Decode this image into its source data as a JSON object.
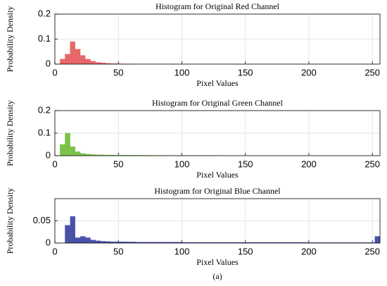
{
  "caption": "(a)",
  "chart_data": [
    {
      "type": "histogram",
      "title": "Histogram for Original Red Channel",
      "xlabel": "Pixel Values",
      "ylabel": "Probability Density",
      "color": "#e8686a",
      "bins": [
        0,
        4,
        8,
        12,
        16,
        20,
        24,
        28,
        32,
        36,
        40,
        44,
        48,
        52,
        56,
        60,
        64,
        68,
        72,
        76,
        80,
        84,
        88,
        92,
        96,
        100,
        104,
        108,
        112,
        116,
        120,
        124,
        128,
        132,
        136,
        140,
        144,
        148,
        152,
        156,
        160,
        164,
        168,
        172,
        176,
        180,
        184,
        188,
        192,
        196,
        200,
        204,
        208,
        212,
        216,
        220,
        224,
        228,
        232,
        236,
        240,
        244,
        248,
        252,
        256
      ],
      "counts": [
        0,
        0.02,
        0.04,
        0.09,
        0.06,
        0.035,
        0.02,
        0.012,
        0.007,
        0.005,
        0.003,
        0.002,
        0.002,
        0.001,
        0.001,
        0.0005,
        0,
        0,
        0,
        0,
        0,
        0,
        0,
        0,
        0,
        0,
        0,
        0,
        0,
        0,
        0,
        0,
        0,
        0,
        0,
        0,
        0,
        0,
        0,
        0,
        0,
        0,
        0,
        0,
        0,
        0,
        0,
        0,
        0,
        0,
        0,
        0,
        0,
        0,
        0,
        0,
        0,
        0,
        0,
        0,
        0,
        0,
        0,
        0
      ],
      "xlim": [
        0,
        256
      ],
      "xticks": [
        0,
        50,
        100,
        150,
        200,
        250
      ],
      "ylim": [
        0,
        0.2
      ],
      "yticks": [
        0,
        0.1,
        0.2
      ],
      "grid": true
    },
    {
      "type": "histogram",
      "title": "Histogram for Original Green Channel",
      "xlabel": "Pixel Values",
      "ylabel": "Probability Density",
      "color": "#7cc24a",
      "bins": [
        0,
        4,
        8,
        12,
        16,
        20,
        24,
        28,
        32,
        36,
        40,
        44,
        48,
        52,
        56,
        60,
        64,
        68,
        72,
        76,
        80,
        84,
        88,
        92,
        96,
        100,
        104,
        108,
        112,
        116,
        120,
        124,
        128,
        132,
        136,
        140,
        144,
        148,
        152,
        156,
        160,
        164,
        168,
        172,
        176,
        180,
        184,
        188,
        192,
        196,
        200,
        204,
        208,
        212,
        216,
        220,
        224,
        228,
        232,
        236,
        240,
        244,
        248,
        252,
        256
      ],
      "counts": [
        0,
        0.05,
        0.1,
        0.04,
        0.018,
        0.01,
        0.007,
        0.005,
        0.004,
        0.0035,
        0.003,
        0.003,
        0.0025,
        0.0025,
        0.002,
        0.002,
        0.002,
        0.0018,
        0.0016,
        0.0015,
        0.0014,
        0.0013,
        0.0012,
        0.0011,
        0.001,
        0.001,
        0.0009,
        0.0008,
        0.0007,
        0.0006,
        0.0005,
        0.0005,
        0.0004,
        0.0003,
        0.0002,
        0,
        0,
        0,
        0,
        0,
        0,
        0,
        0,
        0,
        0,
        0,
        0,
        0,
        0,
        0,
        0,
        0,
        0,
        0,
        0,
        0,
        0,
        0,
        0,
        0,
        0,
        0,
        0,
        0
      ],
      "xlim": [
        0,
        256
      ],
      "xticks": [
        0,
        50,
        100,
        150,
        200,
        250
      ],
      "ylim": [
        0,
        0.2
      ],
      "yticks": [
        0,
        0.1,
        0.2
      ],
      "grid": true
    },
    {
      "type": "histogram",
      "title": "Histogram for Original Blue Channel",
      "xlabel": "Pixel Values",
      "ylabel": "Probability Density",
      "color": "#4a52a8",
      "bins": [
        0,
        4,
        8,
        12,
        16,
        20,
        24,
        28,
        32,
        36,
        40,
        44,
        48,
        52,
        56,
        60,
        64,
        68,
        72,
        76,
        80,
        84,
        88,
        92,
        96,
        100,
        104,
        108,
        112,
        116,
        120,
        124,
        128,
        132,
        136,
        140,
        144,
        148,
        152,
        156,
        160,
        164,
        168,
        172,
        176,
        180,
        184,
        188,
        192,
        196,
        200,
        204,
        208,
        212,
        216,
        220,
        224,
        228,
        232,
        236,
        240,
        244,
        248,
        252,
        256
      ],
      "counts": [
        0,
        0,
        0.04,
        0.06,
        0.012,
        0.015,
        0.012,
        0.007,
        0.005,
        0.004,
        0.0035,
        0.003,
        0.003,
        0.0028,
        0.0025,
        0.0025,
        0.002,
        0.002,
        0.002,
        0.002,
        0.002,
        0.002,
        0.002,
        0.002,
        0.002,
        0.0015,
        0.0015,
        0.0015,
        0.0015,
        0.0015,
        0.0015,
        0.0015,
        0.0015,
        0.0015,
        0.0015,
        0.0015,
        0.0015,
        0.0015,
        0.0015,
        0.0015,
        0.0015,
        0.0015,
        0.0015,
        0.0015,
        0.0015,
        0.0015,
        0.0015,
        0.0015,
        0.0015,
        0.0015,
        0.001,
        0.001,
        0.001,
        0.001,
        0.001,
        0.001,
        0.001,
        0.001,
        0.001,
        0.001,
        0.001,
        0.001,
        0.001,
        0.015
      ],
      "xlim": [
        0,
        256
      ],
      "xticks": [
        0,
        50,
        100,
        150,
        200,
        250
      ],
      "ylim": [
        0,
        0.1
      ],
      "yticks": [
        0,
        0.05
      ],
      "grid": true
    }
  ]
}
